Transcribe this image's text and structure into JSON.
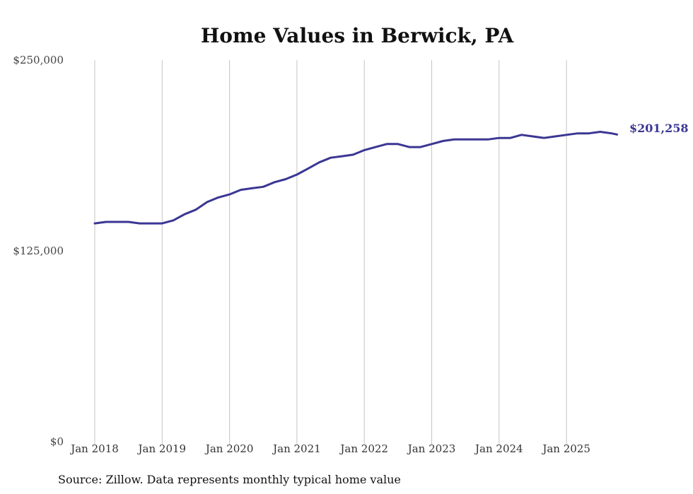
{
  "chart_data": {
    "type": "line",
    "title": "Home Values in Berwick, PA",
    "ylim": [
      0,
      250000
    ],
    "y_ticks": [
      {
        "value": 0,
        "label": "$0"
      },
      {
        "value": 125000,
        "label": "$125,000"
      },
      {
        "value": 250000,
        "label": "$250,000"
      }
    ],
    "x_ticks": [
      {
        "value": 2018,
        "label": "Jan 2018"
      },
      {
        "value": 2019,
        "label": "Jan 2019"
      },
      {
        "value": 2020,
        "label": "Jan 2020"
      },
      {
        "value": 2021,
        "label": "Jan 2021"
      },
      {
        "value": 2022,
        "label": "Jan 2022"
      },
      {
        "value": 2023,
        "label": "Jan 2023"
      },
      {
        "value": 2024,
        "label": "Jan 2024"
      },
      {
        "value": 2025,
        "label": "Jan 2025"
      }
    ],
    "xlim": [
      2018,
      2025.75
    ],
    "grid": "vertical",
    "line_color": "#3b3693",
    "end_label": "$201,258",
    "source": "Source: Zillow. Data represents monthly typical home value",
    "series": [
      {
        "x": [
          2018.0,
          2018.167,
          2018.333,
          2018.5,
          2018.667,
          2018.833,
          2019.0,
          2019.167,
          2019.333,
          2019.5,
          2019.667,
          2019.833,
          2020.0,
          2020.167,
          2020.333,
          2020.5,
          2020.667,
          2020.833,
          2021.0,
          2021.167,
          2021.333,
          2021.5,
          2021.667,
          2021.833,
          2022.0,
          2022.167,
          2022.333,
          2022.5,
          2022.667,
          2022.833,
          2023.0,
          2023.167,
          2023.333,
          2023.5,
          2023.667,
          2023.833,
          2024.0,
          2024.167,
          2024.333,
          2024.5,
          2024.667,
          2024.833,
          2025.0,
          2025.167,
          2025.333,
          2025.5,
          2025.667,
          2025.75
        ],
        "values": [
          143000,
          144000,
          144000,
          144000,
          143000,
          143000,
          143000,
          145000,
          149000,
          152000,
          157000,
          160000,
          162000,
          165000,
          166000,
          167000,
          170000,
          172000,
          175000,
          179000,
          183000,
          186000,
          187000,
          188000,
          191000,
          193000,
          195000,
          195000,
          193000,
          193000,
          195000,
          197000,
          198000,
          198000,
          198000,
          198000,
          199000,
          199000,
          201000,
          200000,
          199000,
          200000,
          201000,
          202000,
          202000,
          203000,
          202000,
          201258
        ]
      }
    ]
  }
}
